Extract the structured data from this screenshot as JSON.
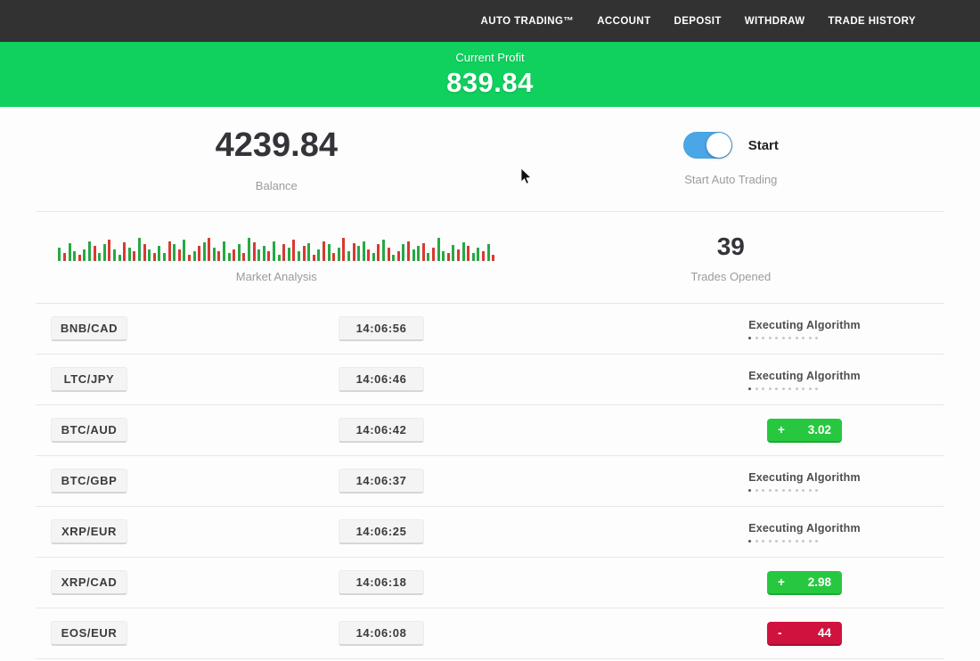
{
  "navbar": {
    "items": [
      "AUTO TRADING™",
      "ACCOUNT",
      "DEPOSIT",
      "WITHDRAW",
      "TRADE HISTORY"
    ]
  },
  "profit_banner": {
    "label": "Current Profit",
    "value": "839.84"
  },
  "stats": {
    "balance": {
      "value": "4239.84",
      "label": "Balance"
    },
    "auto_trading": {
      "toggle_label": "Start",
      "caption": "Start Auto Trading",
      "toggle_on": true
    },
    "market": {
      "caption": "Market Analysis"
    },
    "trades": {
      "value": "39",
      "label": "Trades Opened"
    }
  },
  "chart_data": {
    "type": "bar",
    "title": "Market Analysis",
    "description": "decorative red/green market activity sparkline, bars encoded color+height(px)",
    "bars": "g15,r9,g20,g11,r7,g13,g22,r17,g9,g19,r24,g13,g7,r21,g15,r11,g26,r19,g13,r9,g17,g9,r22,g19,r13,g24,r7,g11,r17,g21,r26,g15,r11,g22,g9,r13,g19,r9,g26,r21,g13,g17,r11,g22,g7,r19,g15,r24,g11,r17,g20,r7,g13,r22,g19,r9,g15,r26,g11,r20,g17,g22,r13,g9,r19,g24,r15,g7,r11,g19,r22,g13,g17,r20,g9,r15,g26,g11,r9,g18,r13,g21,r17,g9,g15,r11,g19,r7"
  },
  "table": {
    "executing_label": "Executing Algorithm",
    "progress_dots": 11,
    "rows": [
      {
        "pair": "BNB/CAD",
        "time": "14:06:56",
        "status_type": "executing"
      },
      {
        "pair": "LTC/JPY",
        "time": "14:06:46",
        "status_type": "executing"
      },
      {
        "pair": "BTC/AUD",
        "time": "14:06:42",
        "status_type": "profit",
        "sign": "+",
        "value": "3.02"
      },
      {
        "pair": "BTC/GBP",
        "time": "14:06:37",
        "status_type": "executing"
      },
      {
        "pair": "XRP/EUR",
        "time": "14:06:25",
        "status_type": "executing"
      },
      {
        "pair": "XRP/CAD",
        "time": "14:06:18",
        "status_type": "profit",
        "sign": "+",
        "value": "2.98"
      },
      {
        "pair": "EOS/EUR",
        "time": "14:06:08",
        "status_type": "loss",
        "sign": "-",
        "value": "44"
      }
    ]
  },
  "colors": {
    "navbar_bg": "#323232",
    "banner_green": "#10d05e",
    "profit_green": "#27c840",
    "loss_red": "#d0123f",
    "toggle_blue": "#4ba6e8",
    "spark_green": "#27a844",
    "spark_red": "#d63a31"
  }
}
